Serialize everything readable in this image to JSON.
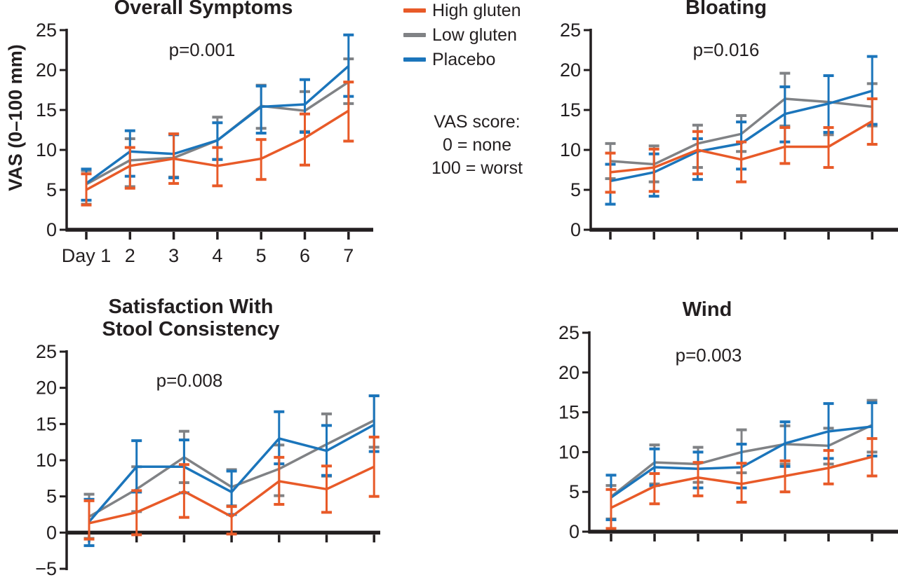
{
  "figure": {
    "y_axis_label": "VAS (0–100 mm)",
    "text_color": "#231F20",
    "note": {
      "lines": [
        "VAS score:",
        "0 = none",
        "100 = worst"
      ]
    },
    "legend": {
      "items": [
        {
          "label": "High gluten",
          "color": "#E85A28"
        },
        {
          "label": "Low gluten",
          "color": "#808285"
        },
        {
          "label": "Placebo",
          "color": "#1B75BB"
        }
      ]
    }
  },
  "chart_data": [
    {
      "id": "overall-symptoms",
      "type": "line",
      "title": "Overall Symptoms",
      "p_value": "p=0.001",
      "x": [
        1,
        2,
        3,
        4,
        5,
        6,
        7
      ],
      "x_tick_labels": [
        "Day 1",
        "2",
        "3",
        "4",
        "5",
        "6",
        "7"
      ],
      "ylim": [
        0,
        25
      ],
      "x_axis_at": 0,
      "yticks": [
        {
          "v": 0,
          "label": "0"
        },
        {
          "v": 5,
          "label": "5"
        },
        {
          "v": 10,
          "label": "10"
        },
        {
          "v": 15,
          "label": "15"
        },
        {
          "v": 20,
          "label": "20"
        },
        {
          "v": 25,
          "label": "25"
        }
      ],
      "series": [
        {
          "name": "High gluten",
          "color": "#E85A28",
          "values": [
            5.0,
            8.0,
            8.9,
            8.0,
            8.9,
            11.5,
            14.9
          ],
          "err_lo": [
            3.1,
            5.2,
            5.8,
            5.5,
            6.3,
            8.1,
            11.1
          ],
          "err_hi": [
            7.0,
            10.3,
            12.0,
            10.3,
            11.3,
            14.5,
            18.5
          ]
        },
        {
          "name": "Low gluten",
          "color": "#808285",
          "values": [
            5.7,
            8.7,
            9.0,
            11.2,
            15.5,
            14.9,
            18.5
          ],
          "err_lo": [
            3.2,
            5.4,
            6.6,
            8.8,
            12.7,
            12.3,
            15.8
          ],
          "err_hi": [
            7.4,
            11.4,
            12.0,
            14.1,
            18.1,
            17.3,
            21.4
          ]
        },
        {
          "name": "Placebo",
          "color": "#1B75BB",
          "values": [
            5.8,
            9.8,
            9.5,
            11.2,
            15.4,
            15.7,
            20.5
          ],
          "err_lo": [
            3.7,
            6.7,
            6.5,
            8.8,
            12.1,
            12.2,
            16.7
          ],
          "err_hi": [
            7.6,
            12.4,
            11.9,
            13.4,
            18.0,
            18.8,
            24.4
          ]
        }
      ]
    },
    {
      "id": "bloating",
      "type": "line",
      "title": "Bloating",
      "p_value": "p=0.016",
      "x": [
        1,
        2,
        3,
        4,
        5,
        6,
        7
      ],
      "x_tick_labels": null,
      "ylim": [
        0,
        25
      ],
      "x_axis_at": 0,
      "yticks": [
        {
          "v": 0,
          "label": "0"
        },
        {
          "v": 5,
          "label": "5"
        },
        {
          "v": 10,
          "label": "10"
        },
        {
          "v": 15,
          "label": "15"
        },
        {
          "v": 20,
          "label": "20"
        },
        {
          "v": 25,
          "label": "25"
        }
      ],
      "series": [
        {
          "name": "High gluten",
          "color": "#E85A28",
          "values": [
            7.2,
            7.8,
            10.0,
            8.8,
            10.4,
            10.4,
            13.6
          ],
          "err_lo": [
            4.7,
            4.8,
            7.0,
            6.0,
            8.3,
            7.8,
            10.7
          ],
          "err_hi": [
            9.6,
            10.1,
            12.3,
            11.0,
            12.8,
            12.8,
            16.4
          ]
        },
        {
          "name": "Low gluten",
          "color": "#808285",
          "values": [
            8.6,
            8.2,
            10.8,
            12.0,
            16.4,
            16.0,
            15.4
          ],
          "err_lo": [
            6.4,
            6.0,
            7.8,
            9.8,
            13.0,
            11.9,
            13.0
          ],
          "err_hi": [
            10.8,
            10.5,
            13.1,
            14.3,
            19.6,
            19.3,
            18.3
          ]
        },
        {
          "name": "Placebo",
          "color": "#1B75BB",
          "values": [
            6.1,
            7.2,
            9.8,
            10.8,
            14.5,
            15.8,
            17.4
          ],
          "err_lo": [
            3.2,
            4.2,
            6.3,
            7.6,
            11.0,
            12.2,
            13.2
          ],
          "err_hi": [
            8.2,
            9.5,
            11.4,
            13.5,
            17.9,
            19.3,
            21.7
          ]
        }
      ]
    },
    {
      "id": "satisfaction-stool-consistency",
      "type": "line",
      "title": "Satisfaction With\nStool Consistency",
      "p_value": "p=0.008",
      "x": [
        1,
        2,
        3,
        4,
        5,
        6,
        7
      ],
      "x_tick_labels": null,
      "ylim": [
        -5,
        25
      ],
      "x_axis_at": 0,
      "yticks": [
        {
          "v": -5,
          "label": "−5"
        },
        {
          "v": 0,
          "label": "0"
        },
        {
          "v": 5,
          "label": "5"
        },
        {
          "v": 10,
          "label": "10"
        },
        {
          "v": 15,
          "label": "15"
        },
        {
          "v": 20,
          "label": "20"
        },
        {
          "v": 25,
          "label": "25"
        }
      ],
      "series": [
        {
          "name": "High gluten",
          "color": "#E85A28",
          "values": [
            1.3,
            2.8,
            5.7,
            2.2,
            7.1,
            6.0,
            9.1
          ],
          "err_lo": [
            -0.9,
            -0.3,
            2.1,
            -0.2,
            3.9,
            2.8,
            5.0
          ],
          "err_hi": [
            4.4,
            5.8,
            9.4,
            3.6,
            10.4,
            9.2,
            13.2
          ]
        },
        {
          "name": "Low gluten",
          "color": "#808285",
          "values": [
            2.2,
            6.0,
            10.4,
            6.3,
            8.8,
            12.2,
            15.5
          ],
          "err_lo": [
            -0.8,
            2.9,
            6.9,
            3.7,
            5.1,
            7.8,
            11.8
          ],
          "err_hi": [
            5.3,
            9.1,
            14.0,
            8.7,
            12.1,
            16.4,
            18.9
          ]
        },
        {
          "name": "Placebo",
          "color": "#1B75BB",
          "values": [
            1.5,
            9.1,
            9.1,
            5.6,
            13.0,
            11.3,
            14.9
          ],
          "err_lo": [
            -1.8,
            5.6,
            5.5,
            2.5,
            9.5,
            7.9,
            11.2
          ],
          "err_hi": [
            4.6,
            12.7,
            12.8,
            8.5,
            16.7,
            14.8,
            18.9
          ]
        }
      ]
    },
    {
      "id": "wind",
      "type": "line",
      "title": "Wind",
      "p_value": "p=0.003",
      "x": [
        1,
        2,
        3,
        4,
        5,
        6,
        7
      ],
      "x_tick_labels": null,
      "ylim": [
        0,
        25
      ],
      "x_axis_at": 0,
      "yticks": [
        {
          "v": 0,
          "label": "0"
        },
        {
          "v": 5,
          "label": "5"
        },
        {
          "v": 10,
          "label": "10"
        },
        {
          "v": 15,
          "label": "15"
        },
        {
          "v": 20,
          "label": "20"
        },
        {
          "v": 25,
          "label": "25"
        }
      ],
      "series": [
        {
          "name": "High gluten",
          "color": "#E85A28",
          "values": [
            3.0,
            5.7,
            6.8,
            6.0,
            7.0,
            8.0,
            9.4
          ],
          "err_lo": [
            0.4,
            3.5,
            4.5,
            3.7,
            5.0,
            6.0,
            7.0
          ],
          "err_hi": [
            5.3,
            7.3,
            8.7,
            8.6,
            8.9,
            10.2,
            11.7
          ]
        },
        {
          "name": "Low gluten",
          "color": "#808285",
          "values": [
            4.4,
            8.7,
            8.5,
            10.0,
            11.0,
            10.8,
            13.4
          ],
          "err_lo": [
            1.6,
            6.0,
            6.2,
            7.4,
            8.5,
            8.5,
            10.0
          ],
          "err_hi": [
            5.8,
            10.9,
            10.6,
            12.8,
            13.3,
            13.0,
            16.5
          ]
        },
        {
          "name": "Placebo",
          "color": "#1B75BB",
          "values": [
            4.3,
            8.1,
            7.9,
            8.1,
            11.1,
            12.6,
            13.2
          ],
          "err_lo": [
            1.5,
            5.8,
            5.5,
            5.5,
            8.2,
            9.2,
            9.5
          ],
          "err_hi": [
            7.1,
            10.4,
            10.0,
            11.0,
            13.8,
            16.1,
            16.2
          ]
        }
      ]
    }
  ]
}
